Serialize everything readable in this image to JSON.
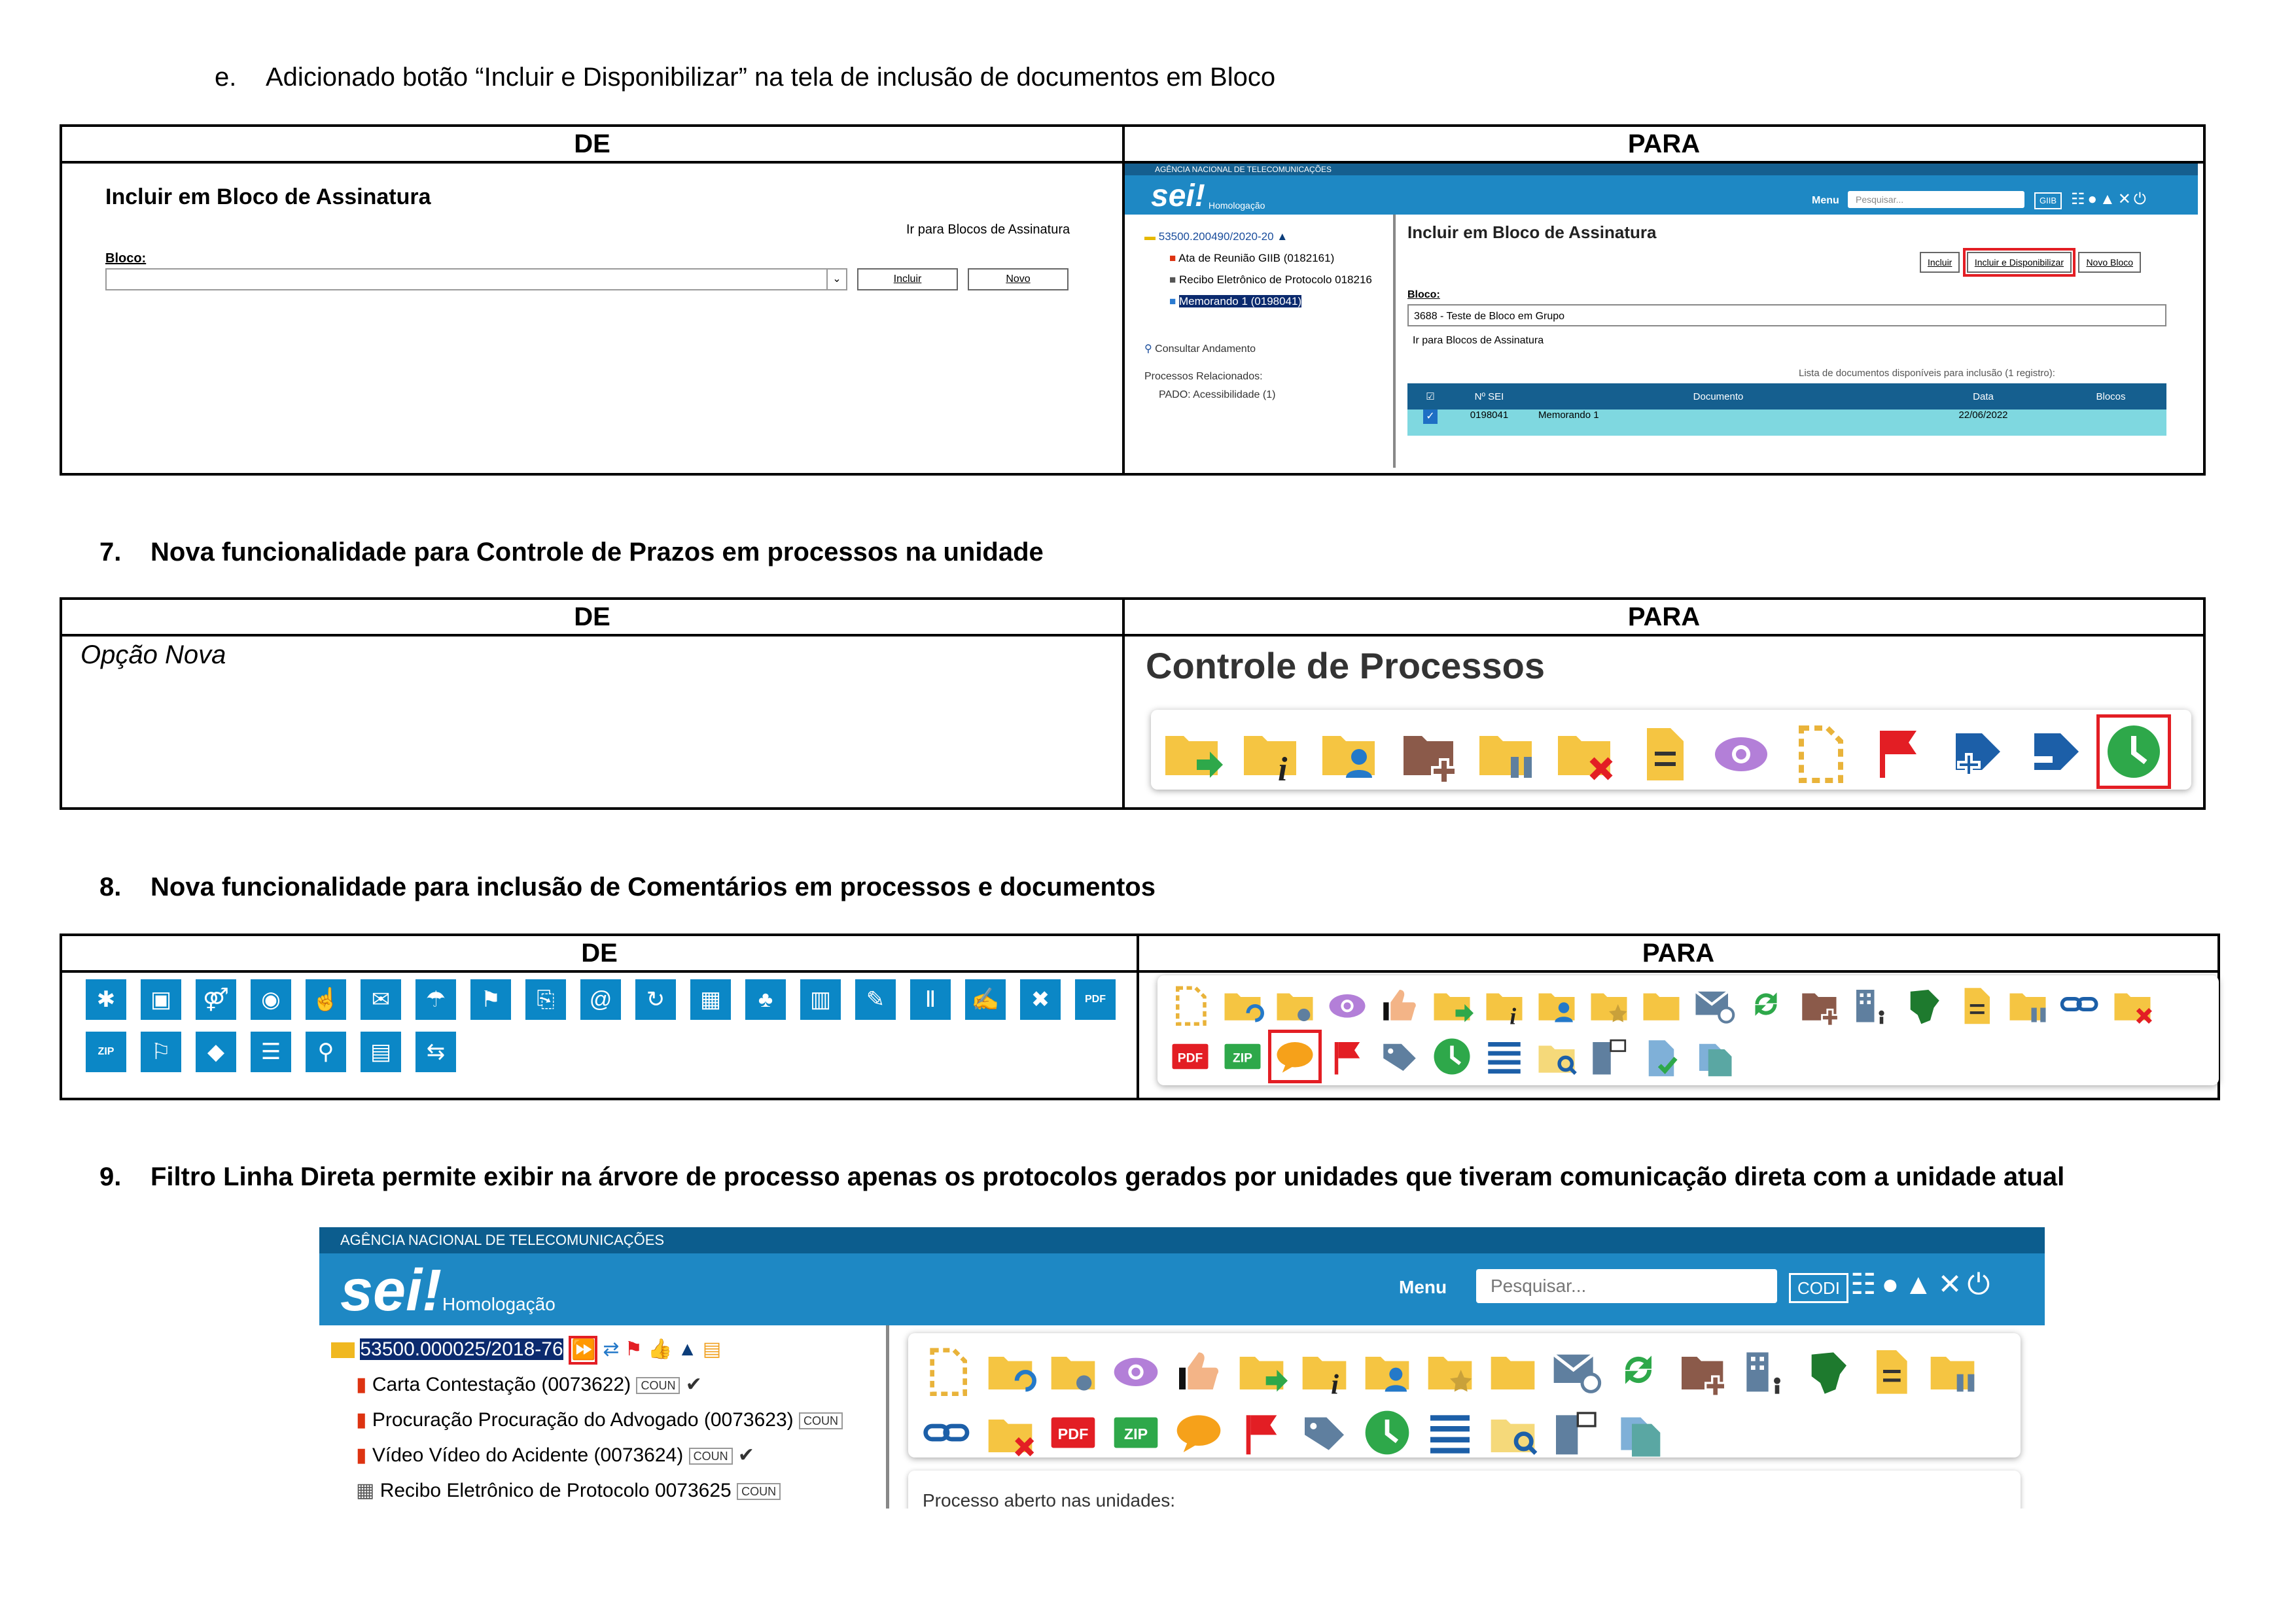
{
  "section_e": {
    "heading_marker": "e.",
    "heading": "Adicionado botão “Incluir e Disponibilizar” na tela de inclusão de documentos em Bloco",
    "col_de": "DE",
    "col_para": "PARA",
    "de": {
      "title": "Incluir em Bloco de Assinatura",
      "link": "Ir para Blocos de Assinatura",
      "bloco_label": "Bloco:",
      "btn_incluir": "Incluir",
      "btn_novo": "Novo"
    },
    "para": {
      "agency": "AGÊNCIA NACIONAL DE TELECOMUNICAÇÕES",
      "logo": "sei!",
      "env": "Homologação",
      "menu": "Menu",
      "search_placeholder": "Pesquisar...",
      "unit": "GIIB",
      "tree": {
        "process": "53500.200490/2020-20",
        "doc1": "Ata de Reunião GIIB (0182161)",
        "doc2": "Recibo Eletrônico de Protocolo 018216",
        "doc3": "Memorando 1 (0198041)"
      },
      "consultar": "Consultar Andamento",
      "rel_label": "Processos Relacionados:",
      "rel_item": "PADO: Acessibilidade (1)",
      "title": "Incluir em Bloco de Assinatura",
      "btn_incluir": "Incluir",
      "btn_incluir_disp": "Incluir e Disponibilizar",
      "btn_novo_bloco": "Novo Bloco",
      "bloco_label": "Bloco:",
      "bloco_value": "3688 - Teste de Bloco em Grupo",
      "ir_link": "Ir para Blocos de Assinatura",
      "list_caption": "Lista de documentos disponíveis para inclusão (1 registro):",
      "table_headers": [
        "Nº SEI",
        "Documento",
        "Data",
        "Blocos"
      ],
      "table_row": {
        "nsei": "0198041",
        "documento": "Memorando 1",
        "data": "22/06/2022",
        "blocos": ""
      }
    }
  },
  "section_7": {
    "number": "7.",
    "heading": "Nova funcionalidade para Controle de Prazos em processos na unidade",
    "col_de": "DE",
    "col_para": "PARA",
    "de_text": "Opção Nova",
    "para_title": "Controle de Processos",
    "icons": [
      "folder-send-icon",
      "folder-info-icon",
      "folder-user-icon",
      "folder-add-icon",
      "folder-pause-icon",
      "folder-remove-icon",
      "note-icon",
      "eye-icon",
      "dashed-doc-icon",
      "flag-icon",
      "tag-add-icon",
      "tag-remove-icon",
      "clock-icon"
    ]
  },
  "section_8": {
    "number": "8.",
    "heading": "Nova funcionalidade para inclusão de Comentários em processos e documentos",
    "col_de": "DE",
    "col_para": "PARA",
    "pdf": "PDF",
    "zip": "ZIP"
  },
  "section_9": {
    "number": "9.",
    "heading": "Filtro Linha Direta permite exibir na árvore de processo apenas os protocolos gerados por unidades que tiveram comunicação direta com a unidade atual",
    "agency": "AGÊNCIA NACIONAL DE TELECOMUNICAÇÕES",
    "logo": "sei!",
    "env": "Homologação",
    "menu": "Menu",
    "search_placeholder": "Pesquisar...",
    "unit": "CODI",
    "process": "53500.000025/2018-76",
    "docs": [
      {
        "name": "Carta Contestação (0073622)",
        "badge": "COUN"
      },
      {
        "name": "Procuração Procuração do Advogado (0073623)",
        "badge": "COUN"
      },
      {
        "name": "Vídeo Vídeo do Acidente (0073624)",
        "badge": "COUN"
      },
      {
        "name": "Recibo Eletrônico de Protocolo 0073625",
        "badge": "COUN"
      }
    ],
    "open_units": "Processo aberto nas unidades:",
    "pdf": "PDF",
    "zip": "ZIP"
  }
}
